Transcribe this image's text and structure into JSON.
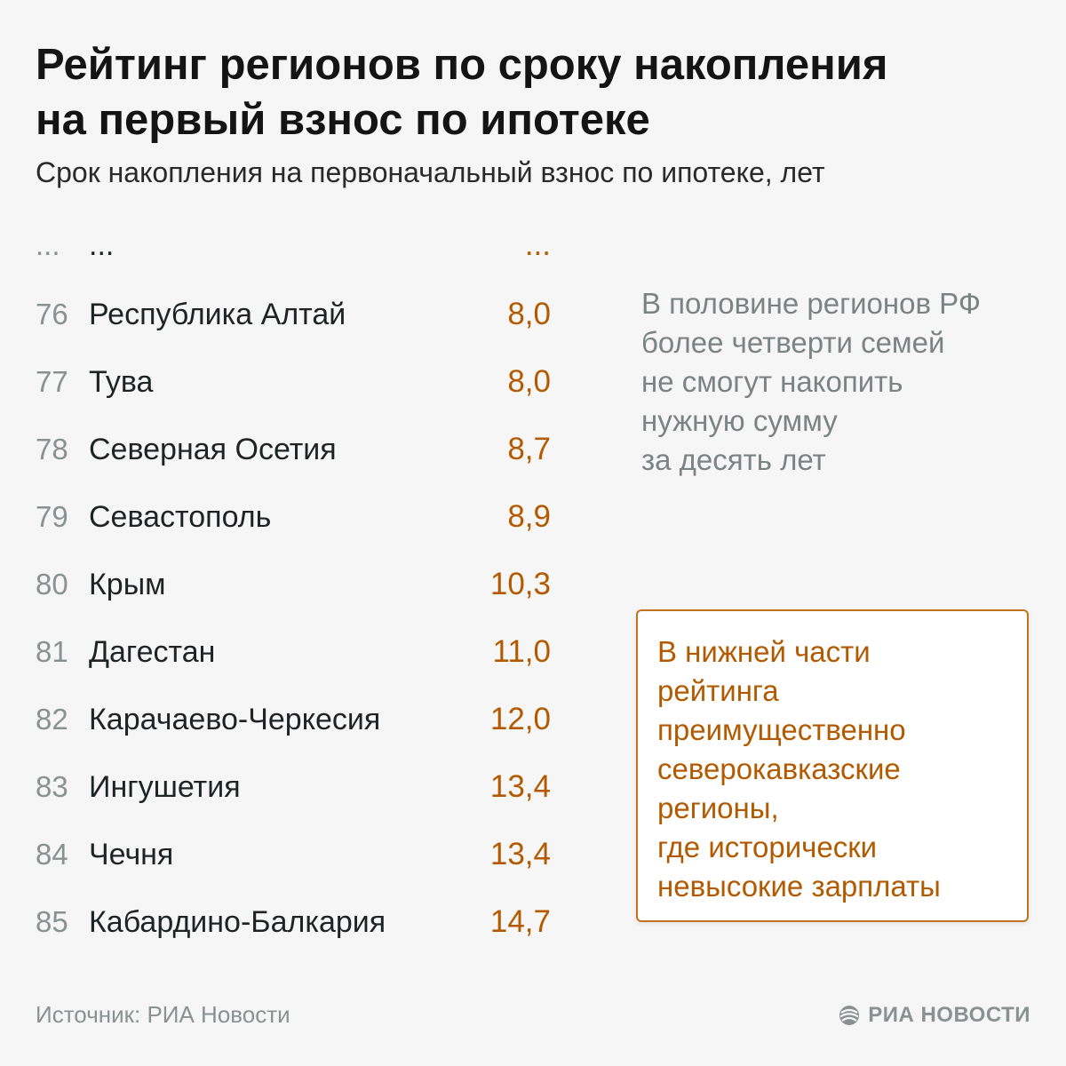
{
  "title_line1": "Рейтинг регионов по сроку накопления",
  "title_line2": "на первый взнос по ипотеке",
  "subtitle": "Срок накопления на первоначальный взнос по ипотеке, лет",
  "chart_data": {
    "type": "table",
    "title": "Рейтинг регионов по сроку накопления на первый взнос по ипотеке",
    "unit": "лет",
    "columns": [
      "rank",
      "region",
      "years"
    ],
    "ellipsis_row": {
      "rank": "...",
      "region": "...",
      "value": "..."
    },
    "rows": [
      {
        "rank": "76",
        "region": "Республика Алтай",
        "value": "8,0",
        "years": 8.0
      },
      {
        "rank": "77",
        "region": "Тува",
        "value": "8,0",
        "years": 8.0
      },
      {
        "rank": "78",
        "region": "Северная Осетия",
        "value": "8,7",
        "years": 8.7
      },
      {
        "rank": "79",
        "region": "Севастополь",
        "value": "8,9",
        "years": 8.9
      },
      {
        "rank": "80",
        "region": "Крым",
        "value": "10,3",
        "years": 10.3
      },
      {
        "rank": "81",
        "region": "Дагестан",
        "value": "11,0",
        "years": 11.0
      },
      {
        "rank": "82",
        "region": "Карачаево-Черкесия",
        "value": "12,0",
        "years": 12.0
      },
      {
        "rank": "83",
        "region": "Ингушетия",
        "value": "13,4",
        "years": 13.4
      },
      {
        "rank": "84",
        "region": "Чечня",
        "value": "13,4",
        "years": 13.4
      },
      {
        "rank": "85",
        "region": "Кабардино-Балкария",
        "value": "14,7",
        "years": 14.7
      }
    ]
  },
  "note_lines": [
    "В половине регионов РФ",
    "более четверти семей",
    "не смогут накопить",
    "нужную сумму",
    "за десять лет"
  ],
  "callout_lines": [
    "В нижней части",
    "рейтинга",
    "преимущественно",
    "северокавказские",
    "регионы,",
    "где исторически",
    "невысокие зарплаты"
  ],
  "source": "Источник: РИА Новости",
  "logo_text": "РИА НОВОСТИ",
  "colors": {
    "accent": "#b35a00",
    "rank": "#8a9191",
    "note": "#7c8383",
    "background": "#f6f6f6"
  }
}
